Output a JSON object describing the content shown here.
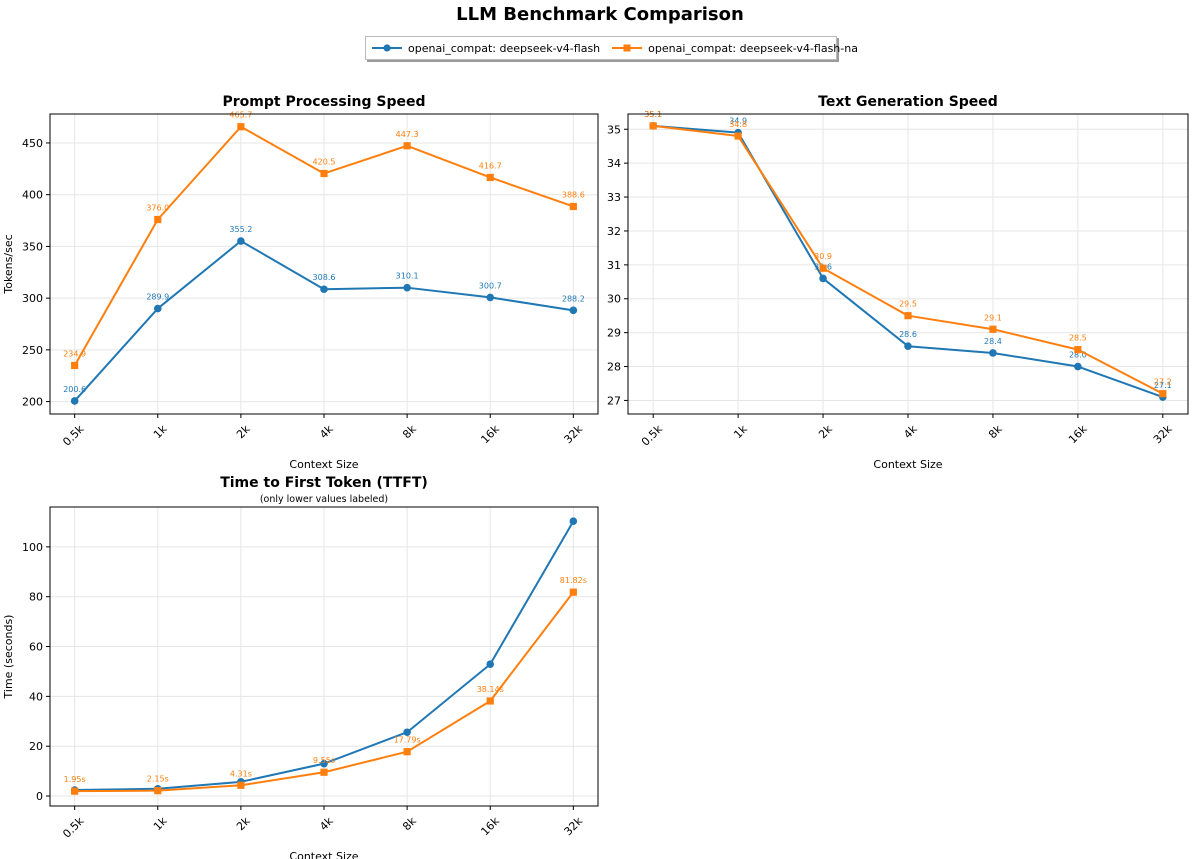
{
  "figure": {
    "title": "LLM Benchmark Comparison"
  },
  "legend": {
    "entries": [
      {
        "label": "openai_compat: deepseek-v4-flash",
        "color": "#1f77b4",
        "marker": "circle"
      },
      {
        "label": "openai_compat: deepseek-v4-flash-na",
        "color": "#ff7f0e",
        "marker": "square"
      }
    ]
  },
  "chart_data": [
    {
      "type": "line",
      "title": "Prompt Processing Speed",
      "subtitle": "",
      "xlabel": "Context Size",
      "ylabel": "Tokens/sec",
      "categories": [
        "0.5k",
        "1k",
        "2k",
        "4k",
        "8k",
        "16k",
        "32k"
      ],
      "ylim": [
        188,
        478
      ],
      "yticks": [
        200,
        250,
        300,
        350,
        400,
        450
      ],
      "grid": true,
      "series": [
        {
          "name": "openai_compat: deepseek-v4-flash",
          "color": "#1f77b4",
          "marker": "circle",
          "values": [
            200.6,
            289.9,
            355.2,
            308.6,
            310.1,
            300.7,
            288.2
          ],
          "labels": [
            "200.6",
            "289.9",
            "355.2",
            "308.6",
            "310.1",
            "300.7",
            "288.2"
          ]
        },
        {
          "name": "openai_compat: deepseek-v4-flash-na",
          "color": "#ff7f0e",
          "marker": "square",
          "values": [
            234.9,
            376.0,
            465.7,
            420.5,
            447.3,
            416.7,
            388.6
          ],
          "labels": [
            "234.9",
            "376.0",
            "465.7",
            "420.5",
            "447.3",
            "416.7",
            "388.6"
          ]
        }
      ]
    },
    {
      "type": "line",
      "title": "Text Generation Speed",
      "subtitle": "",
      "xlabel": "Context Size",
      "ylabel": "Tokens/sec",
      "categories": [
        "0.5k",
        "1k",
        "2k",
        "4k",
        "8k",
        "16k",
        "32k"
      ],
      "ylim": [
        26.6,
        35.45
      ],
      "yticks": [
        27,
        28,
        29,
        30,
        31,
        32,
        33,
        34,
        35
      ],
      "grid": true,
      "series": [
        {
          "name": "openai_compat: deepseek-v4-flash",
          "color": "#1f77b4",
          "marker": "circle",
          "values": [
            35.1,
            34.9,
            30.6,
            28.6,
            28.4,
            28.0,
            27.1
          ],
          "labels": [
            "35.1",
            "34.9",
            "30.6",
            "28.6",
            "28.4",
            "28.0",
            "27.1"
          ]
        },
        {
          "name": "openai_compat: deepseek-v4-flash-na",
          "color": "#ff7f0e",
          "marker": "square",
          "values": [
            35.1,
            34.8,
            30.9,
            29.5,
            29.1,
            28.5,
            27.2
          ],
          "labels": [
            "35.1",
            "34.8",
            "30.9",
            "29.5",
            "29.1",
            "28.5",
            "27.2"
          ]
        }
      ]
    },
    {
      "type": "line",
      "title": "Time to First Token (TTFT)",
      "subtitle": "(only lower values labeled)",
      "xlabel": "Context Size",
      "ylabel": "Time (seconds)",
      "categories": [
        "0.5k",
        "1k",
        "2k",
        "4k",
        "8k",
        "16k",
        "32k"
      ],
      "ylim": [
        -4,
        116
      ],
      "yticks": [
        0,
        20,
        40,
        60,
        80,
        100
      ],
      "grid": true,
      "series": [
        {
          "name": "openai_compat: deepseek-v4-flash",
          "color": "#1f77b4",
          "marker": "circle",
          "values": [
            2.4,
            2.9,
            5.7,
            13.0,
            25.6,
            52.9,
            110.3
          ],
          "labels": [
            "",
            "",
            "",
            "",
            "",
            "",
            ""
          ]
        },
        {
          "name": "openai_compat: deepseek-v4-flash-na",
          "color": "#ff7f0e",
          "marker": "square",
          "values": [
            1.95,
            2.15,
            4.31,
            9.55,
            17.79,
            38.14,
            81.82
          ],
          "labels": [
            "1.95s",
            "2.15s",
            "4.31s",
            "9.55s",
            "17.79s",
            "38.14s",
            "81.82s"
          ]
        }
      ]
    }
  ]
}
